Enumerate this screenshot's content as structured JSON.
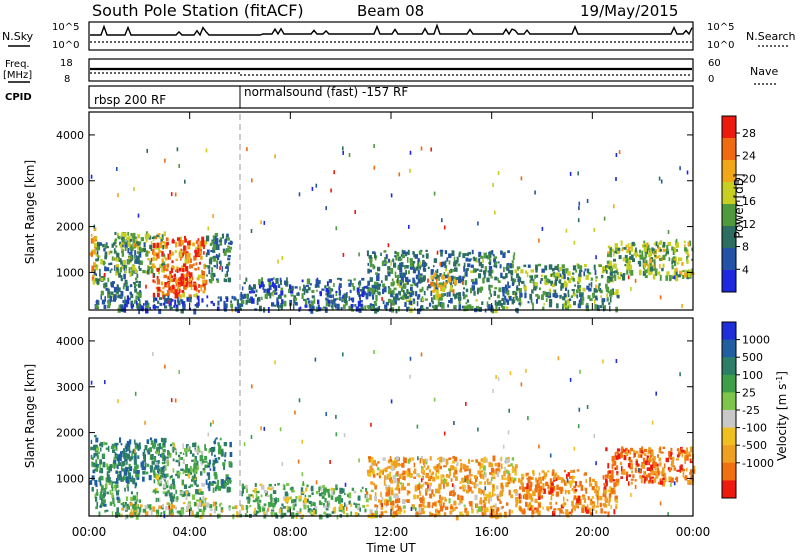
{
  "header": {
    "station": "South Pole Station (fitACF)",
    "beam": "Beam 08",
    "date": "19/May/2015"
  },
  "strip_panels": {
    "nsky": {
      "left_label": "N.Sky",
      "right_label": "N.Search",
      "left_ticks": [
        "10^5",
        "10^0"
      ],
      "right_ticks": [
        "10^5",
        "10^0"
      ]
    },
    "freq": {
      "left_label_1": "Freq.",
      "left_label_2": "[MHz]",
      "right_label": "Nave",
      "left_ticks": [
        "18",
        "8"
      ],
      "right_ticks": [
        "60",
        "0"
      ]
    },
    "cpid": {
      "label": "CPID",
      "modes": [
        {
          "name": "rbsp 200 RF",
          "start_hour": 0,
          "end_hour": 6
        },
        {
          "name": "normalsound (fast) -157 RF",
          "start_hour": 6,
          "end_hour": 24
        }
      ]
    }
  },
  "chart_data": [
    {
      "type": "heatmap",
      "title": "Power",
      "xlabel": "Time UT",
      "ylabel": "Slant Range [km]",
      "xlim": [
        0,
        24
      ],
      "ylim": [
        180,
        4500
      ],
      "x_ticks": [
        "00:00",
        "04:00",
        "08:00",
        "12:00",
        "16:00",
        "20:00",
        "00:00"
      ],
      "y_ticks": [
        1000,
        2000,
        3000,
        4000
      ],
      "colorbar": {
        "label": "Power [dB]",
        "ticks": [
          4,
          8,
          12,
          16,
          20,
          24,
          28
        ],
        "range": [
          0,
          31
        ],
        "colors": [
          "#1f28e0",
          "#2353a6",
          "#2c6e5f",
          "#4f9a3c",
          "#c6cf22",
          "#f0a818",
          "#f06a10",
          "#ee1a10"
        ]
      },
      "echo_regions": [
        {
          "t_start": 0.0,
          "t_end": 0.3,
          "r_min": 800,
          "r_max": 2000,
          "level": 20
        },
        {
          "t_start": 0.2,
          "t_end": 2.0,
          "r_min": 250,
          "r_max": 1800,
          "level": 10
        },
        {
          "t_start": 1.0,
          "t_end": 3.0,
          "r_min": 1000,
          "r_max": 1900,
          "level": 14
        },
        {
          "t_start": 2.5,
          "t_end": 4.6,
          "r_min": 500,
          "r_max": 1800,
          "level": 24
        },
        {
          "t_start": 3.0,
          "t_end": 4.0,
          "r_min": 600,
          "r_max": 1200,
          "level": 28
        },
        {
          "t_start": 4.6,
          "t_end": 5.6,
          "r_min": 800,
          "r_max": 1900,
          "level": 10
        },
        {
          "t_start": 1.0,
          "t_end": 6.0,
          "r_min": 200,
          "r_max": 500,
          "level": 6
        },
        {
          "t_start": 6.0,
          "t_end": 11.0,
          "r_min": 200,
          "r_max": 900,
          "level": 8
        },
        {
          "t_start": 11.0,
          "t_end": 17.0,
          "r_min": 200,
          "r_max": 1500,
          "level": 10
        },
        {
          "t_start": 13.5,
          "t_end": 14.5,
          "r_min": 500,
          "r_max": 1000,
          "level": 18
        },
        {
          "t_start": 17.0,
          "t_end": 21.0,
          "r_min": 250,
          "r_max": 1200,
          "level": 12
        },
        {
          "t_start": 20.5,
          "t_end": 22.5,
          "r_min": 900,
          "r_max": 1700,
          "level": 14
        },
        {
          "t_start": 22.0,
          "t_end": 24.0,
          "r_min": 900,
          "r_max": 1700,
          "level": 16
        }
      ]
    },
    {
      "type": "heatmap",
      "title": "Velocity",
      "xlabel": "Time UT",
      "ylabel": "Slant Range [km]",
      "xlim": [
        0,
        24
      ],
      "ylim": [
        180,
        4500
      ],
      "x_ticks": [
        "00:00",
        "04:00",
        "08:00",
        "12:00",
        "16:00",
        "20:00",
        "00:00"
      ],
      "y_ticks": [
        1000,
        2000,
        3000,
        4000
      ],
      "colorbar": {
        "label": "Velocity [m s^-1]",
        "ticks": [
          "1000",
          "500",
          "100",
          "25",
          "-25",
          "-100",
          "-500",
          "-1000"
        ],
        "colors": [
          "#1e2ed8",
          "#1f5fa0",
          "#2c7e66",
          "#3da048",
          "#7dc64a",
          "#c8c8c8",
          "#f0c020",
          "#f0a020",
          "#f07010",
          "#ee1a10"
        ]
      },
      "echo_regions": [
        {
          "t_start": 0.0,
          "t_end": 0.3,
          "r_min": 800,
          "r_max": 2000,
          "velocity": 500
        },
        {
          "t_start": 0.2,
          "t_end": 2.0,
          "r_min": 250,
          "r_max": 1800,
          "velocity": 300
        },
        {
          "t_start": 1.0,
          "t_end": 3.0,
          "r_min": 1000,
          "r_max": 1900,
          "velocity": 500
        },
        {
          "t_start": 2.5,
          "t_end": 4.6,
          "r_min": 500,
          "r_max": 1800,
          "velocity": 200
        },
        {
          "t_start": 4.6,
          "t_end": 5.6,
          "r_min": 800,
          "r_max": 1900,
          "velocity": 400
        },
        {
          "t_start": 1.0,
          "t_end": 6.0,
          "r_min": 200,
          "r_max": 500,
          "velocity": 50
        },
        {
          "t_start": 6.0,
          "t_end": 11.0,
          "r_min": 200,
          "r_max": 900,
          "velocity": 150
        },
        {
          "t_start": 11.0,
          "t_end": 17.0,
          "r_min": 200,
          "r_max": 1500,
          "velocity": -200
        },
        {
          "t_start": 17.0,
          "t_end": 21.0,
          "r_min": 250,
          "r_max": 1200,
          "velocity": -300
        },
        {
          "t_start": 20.5,
          "t_end": 22.5,
          "r_min": 900,
          "r_max": 1700,
          "velocity": -400
        },
        {
          "t_start": 22.0,
          "t_end": 24.0,
          "r_min": 900,
          "r_max": 1700,
          "velocity": -350
        }
      ]
    }
  ]
}
